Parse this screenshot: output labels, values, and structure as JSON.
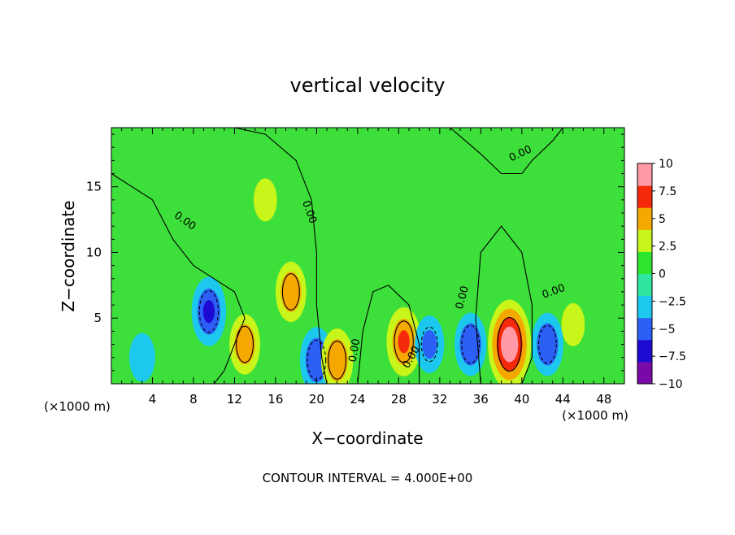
{
  "chart_data": {
    "type": "heatmap",
    "title": "vertical velocity",
    "xlabel": "X−coordinate",
    "ylabel": "Z−coordinate",
    "x_unit": "(×1000 m)",
    "x_unit_right": "(×1000 m)",
    "footer": "CONTOUR INTERVAL = 4.000E+00",
    "xlim": [
      0,
      50
    ],
    "ylim": [
      0,
      19.5
    ],
    "x_ticks": [
      4,
      8,
      12,
      16,
      20,
      24,
      28,
      32,
      36,
      40,
      44,
      48
    ],
    "y_ticks": [
      5,
      10,
      15
    ],
    "colorbar": {
      "range": [
        -10,
        10
      ],
      "ticks": [
        10,
        7.5,
        5,
        2.5,
        0,
        -2.5,
        -5,
        -7.5,
        -10
      ],
      "tick_labels": [
        "10",
        "7.5",
        "5",
        "2.5",
        "0",
        "−2.5",
        "−5",
        "−7.5",
        "−10"
      ],
      "colors": [
        "#7a0aa8",
        "#1d0ad2",
        "#2b5ff5",
        "#1cc8ee",
        "#2ee6a0",
        "#2ee62e",
        "#c8f51a",
        "#f5a800",
        "#f52a0a",
        "#ff9aa6"
      ]
    },
    "contour_labels": [
      "0.00",
      "0.00",
      "0.00",
      "0.00",
      "0.00",
      "0.00",
      "0.00"
    ],
    "features": [
      {
        "x": 9.5,
        "z": 5.5,
        "w": -6.5
      },
      {
        "x": 13.0,
        "z": 3.0,
        "w": 5.0
      },
      {
        "x": 17.5,
        "z": 7.0,
        "w": 5.0
      },
      {
        "x": 15.0,
        "z": 14.0,
        "w": 2.0
      },
      {
        "x": 20.0,
        "z": 1.8,
        "w": -6.0
      },
      {
        "x": 22.0,
        "z": 1.8,
        "w": 5.5
      },
      {
        "x": 28.5,
        "z": 3.2,
        "w": 6.5
      },
      {
        "x": 31.0,
        "z": 3.0,
        "w": -4.5
      },
      {
        "x": 35.0,
        "z": 3.0,
        "w": -5.5
      },
      {
        "x": 38.8,
        "z": 3.0,
        "w": 10.0
      },
      {
        "x": 42.5,
        "z": 3.0,
        "w": -5.5
      },
      {
        "x": 3.0,
        "z": 2.0,
        "w": -3.0
      },
      {
        "x": 45.0,
        "z": 4.5,
        "w": 2.0
      }
    ]
  }
}
